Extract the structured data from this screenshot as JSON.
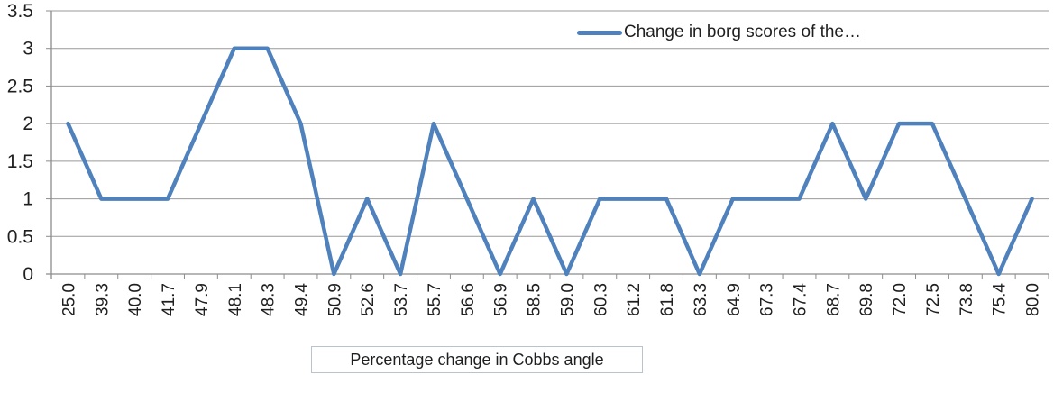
{
  "chart_data": {
    "type": "line",
    "legend": [
      "Change in borg scores of the…"
    ],
    "legend_position": "top-center-inside",
    "xlabel": "Percentage change in Cobbs angle",
    "ylabel": "",
    "categories": [
      "25.0",
      "39.3",
      "40.0",
      "41.7",
      "47.9",
      "48.1",
      "48.3",
      "49.4",
      "50.9",
      "52.6",
      "53.7",
      "55.7",
      "56.6",
      "56.9",
      "58.5",
      "59.0",
      "60.3",
      "61.2",
      "61.8",
      "63.3",
      "64.9",
      "67.3",
      "67.4",
      "68.7",
      "69.8",
      "72.0",
      "72.5",
      "73.8",
      "75.4",
      "80.0"
    ],
    "series": [
      {
        "name": "Change in borg scores of the…",
        "values": [
          2,
          1,
          1,
          1,
          2,
          3,
          3,
          2,
          0,
          1,
          0,
          2,
          1,
          0,
          1,
          0,
          1,
          1,
          1,
          0,
          1,
          1,
          1,
          2,
          1,
          2,
          2,
          1,
          0,
          1
        ]
      }
    ],
    "ylim": [
      0,
      3.5
    ],
    "ytick_step": 0.5,
    "yticks": [
      "3.5",
      "3",
      "2.5",
      "2",
      "1.5",
      "1",
      "0.5",
      "0"
    ],
    "grid": "horizontal",
    "x_labels_rotated": "90deg-ccw",
    "colors": {
      "series": "#4f81bd",
      "gridline": "#999999",
      "axis": "#8c8c8c",
      "text": "#1f1f1f",
      "xlabel_box_border": "#b9c3cc"
    }
  }
}
